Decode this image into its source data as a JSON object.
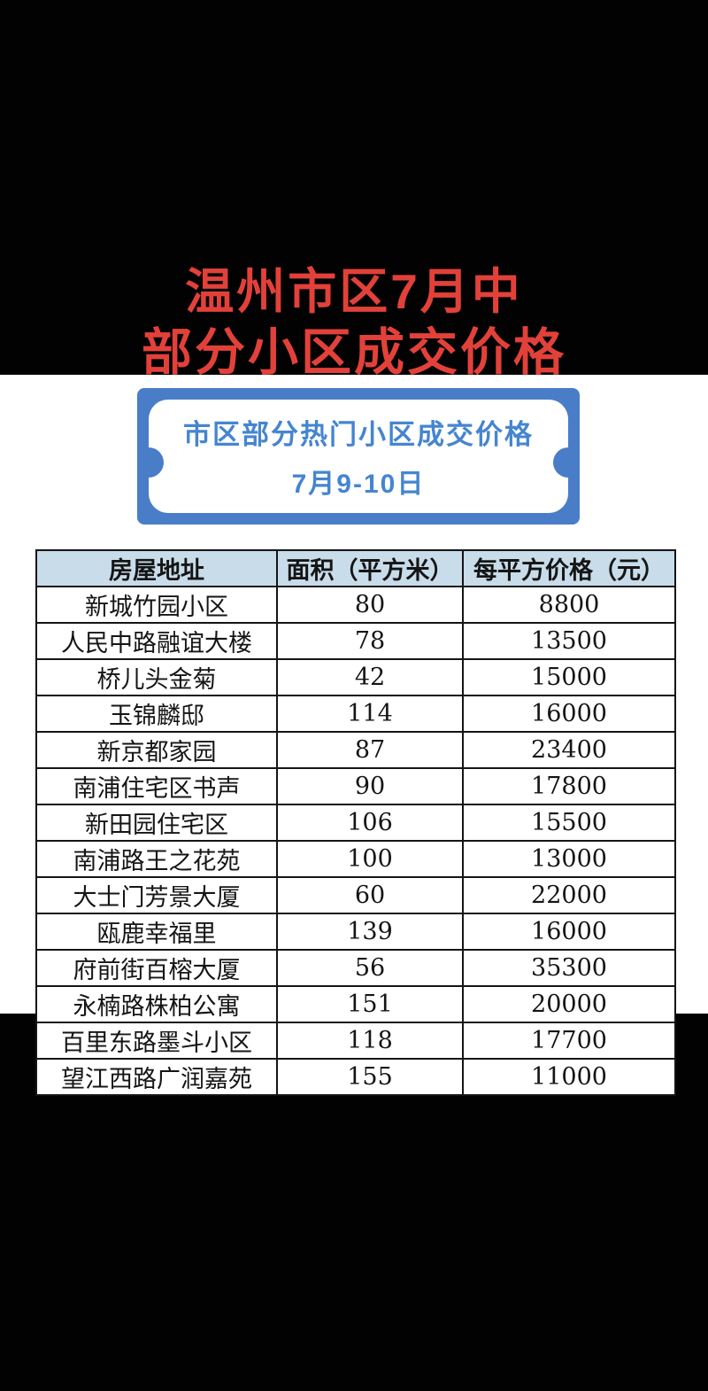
{
  "poster": {
    "title_line1": "温州市区7月中",
    "title_line2": "部分小区成交价格"
  },
  "banner": {
    "heading": "市区部分热门小区成交价格",
    "date_range": "7月9-10日"
  },
  "table": {
    "columns": [
      "房屋地址",
      "面积（平方米）",
      "每平方价格（元）"
    ],
    "rows": [
      {
        "address": "新城竹园小区",
        "area": "80",
        "price": "8800"
      },
      {
        "address": "人民中路融谊大楼",
        "area": "78",
        "price": "13500"
      },
      {
        "address": "桥儿头金菊",
        "area": "42",
        "price": "15000"
      },
      {
        "address": "玉锦麟邸",
        "area": "114",
        "price": "16000"
      },
      {
        "address": "新京都家园",
        "area": "87",
        "price": "23400"
      },
      {
        "address": "南浦住宅区书声",
        "area": "90",
        "price": "17800"
      },
      {
        "address": "新田园住宅区",
        "area": "106",
        "price": "15500"
      },
      {
        "address": "南浦路王之花苑",
        "area": "100",
        "price": "13000"
      },
      {
        "address": "大士门芳景大厦",
        "area": "60",
        "price": "22000"
      },
      {
        "address": "瓯鹿幸福里",
        "area": "139",
        "price": "16000"
      },
      {
        "address": "府前街百榕大厦",
        "area": "56",
        "price": "35300"
      },
      {
        "address": "永楠路株柏公寓",
        "area": "151",
        "price": "20000"
      },
      {
        "address": "百里东路墨斗小区",
        "area": "118",
        "price": "17700"
      },
      {
        "address": "望江西路广润嘉苑",
        "area": "155",
        "price": "11000"
      }
    ]
  },
  "colors": {
    "title_red": "#e2413a",
    "banner_blue": "#4a7dc7",
    "banner_text_blue": "#4585d0",
    "header_bg": "#c8dcea",
    "table_border": "#151515",
    "background": "#020202"
  }
}
